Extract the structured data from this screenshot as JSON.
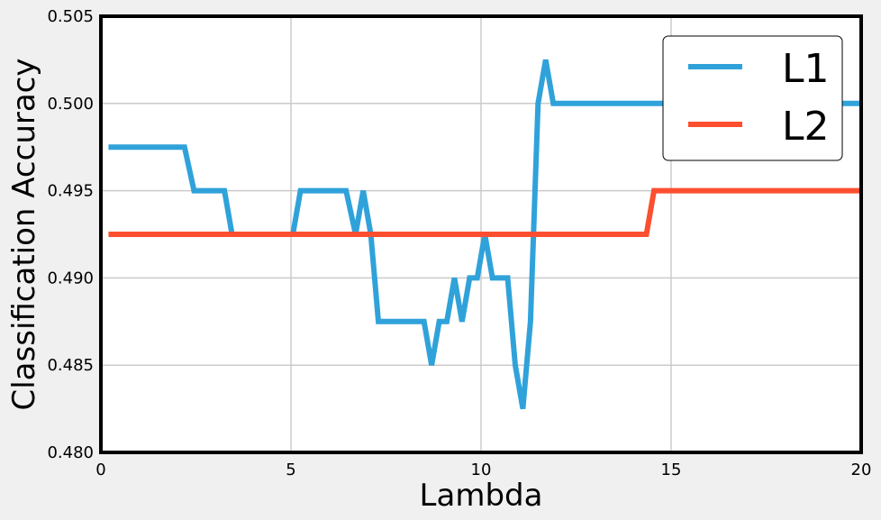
{
  "chart_data": {
    "type": "line",
    "title": "",
    "xlabel": "Lambda",
    "ylabel": "Classification Accuracy",
    "xlim": [
      0,
      20
    ],
    "ylim": [
      0.48,
      0.505
    ],
    "xticks": [
      0,
      5,
      10,
      15,
      20
    ],
    "xtick_labels": [
      "0",
      "5",
      "10",
      "15",
      "20"
    ],
    "yticks": [
      0.48,
      0.485,
      0.49,
      0.495,
      0.5,
      0.505
    ],
    "ytick_labels": [
      "0.480",
      "0.485",
      "0.490",
      "0.495",
      "0.500",
      "0.505"
    ],
    "grid": true,
    "legend_position": "top-right",
    "background": "#f0f0f0",
    "plot_background": "#ffffff",
    "series": [
      {
        "name": "L1",
        "color": "#30a2da",
        "x": [
          0.2,
          2.2,
          2.45,
          3.25,
          3.45,
          5.05,
          5.25,
          6.45,
          6.7,
          6.9,
          7.1,
          7.3,
          8.5,
          8.7,
          8.9,
          9.1,
          9.3,
          9.5,
          9.7,
          9.9,
          10.1,
          10.3,
          10.5,
          10.7,
          10.9,
          11.1,
          11.3,
          11.5,
          11.7,
          11.9,
          20
        ],
        "y": [
          0.4975,
          0.4975,
          0.495,
          0.495,
          0.4925,
          0.4925,
          0.495,
          0.495,
          0.4925,
          0.495,
          0.4925,
          0.4875,
          0.4875,
          0.485,
          0.4875,
          0.4875,
          0.49,
          0.4875,
          0.49,
          0.49,
          0.4925,
          0.49,
          0.49,
          0.49,
          0.485,
          0.4825,
          0.4875,
          0.5,
          0.5025,
          0.5,
          0.5
        ]
      },
      {
        "name": "L2",
        "color": "#fc4f30",
        "x": [
          0.2,
          14.35,
          14.55,
          20
        ],
        "y": [
          0.4925,
          0.4925,
          0.495,
          0.495
        ]
      }
    ]
  }
}
